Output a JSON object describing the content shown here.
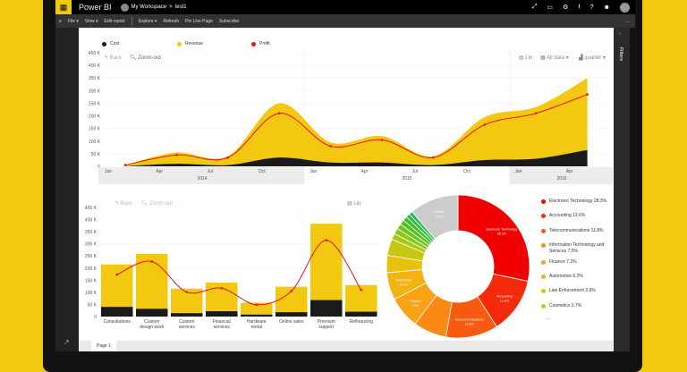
{
  "topbar": {
    "app_name": "Power BI",
    "workspace": "My Workspace",
    "separator": ">",
    "report": "test1",
    "icons": [
      "expand-icon",
      "comment-icon",
      "gear-icon",
      "download-icon",
      "help-icon",
      "smiley-icon",
      "user-avatar"
    ]
  },
  "toolbar": {
    "items": [
      "File ▾",
      "View ▾",
      "Edit report",
      "Explore ▾",
      "Refresh",
      "Pin Live Page",
      "Subscribe"
    ],
    "more": "..."
  },
  "filters": {
    "label": "Filters"
  },
  "page_tab": "Page 1",
  "colors": {
    "cost": "#1a1a1a",
    "revenue": "#f2c811",
    "profit": "#e8121b"
  },
  "top_chart_controls": {
    "back": "Back",
    "zoom_out": "Zoom-out",
    "lin": "Lin",
    "all_data": "All data ▾",
    "quarter": "quarter ▾"
  },
  "bottom_chart_controls": {
    "back": "Back",
    "zoom_out": "Zoom-out",
    "lin": "Lin"
  },
  "chart_data": [
    {
      "type": "area",
      "legend": [
        "Cost",
        "Revenue",
        "Profit"
      ],
      "legend_placement": "top-left",
      "x": [
        "2014 Q1",
        "2014 Q2",
        "2014 Q3",
        "2014 Q4",
        "2015 Q1",
        "2015 Q2",
        "2015 Q3",
        "2015 Q4",
        "2016 Q1",
        "2016 Q2"
      ],
      "series": [
        {
          "name": "Revenue",
          "values": [
            5,
            55,
            40,
            250,
            95,
            120,
            40,
            195,
            235,
            350
          ]
        },
        {
          "name": "Cost",
          "values": [
            0,
            10,
            5,
            35,
            15,
            15,
            5,
            25,
            30,
            65
          ]
        },
        {
          "name": "Profit",
          "values": [
            5,
            45,
            35,
            210,
            80,
            105,
            35,
            165,
            210,
            285
          ]
        }
      ],
      "yticks": [
        "0",
        "50 K",
        "100 K",
        "150 K",
        "200 K",
        "250 K",
        "300 K",
        "350 K",
        "400 K",
        "450 K"
      ],
      "ylim": [
        0,
        450
      ],
      "xticks": [
        "Jan",
        "Apr",
        "Jul",
        "Oct",
        "Jan",
        "Apr",
        "Jul",
        "Oct",
        "Jan",
        "Apr"
      ],
      "years": [
        "2014",
        "2015",
        "2016"
      ],
      "grid": true
    },
    {
      "type": "bar",
      "categories": [
        "Consultations",
        "Custom design work",
        "Custom services",
        "Financial services",
        "Hardware rental",
        "Online sales",
        "Premium support",
        "Refinancing"
      ],
      "series": [
        {
          "name": "Revenue",
          "values": [
            215,
            258,
            115,
            140,
            57,
            123,
            383,
            130
          ]
        },
        {
          "name": "Cost",
          "values": [
            40,
            32,
            14,
            22,
            8,
            18,
            68,
            20
          ]
        },
        {
          "name": "Profit",
          "values": [
            173,
            227,
            101,
            117,
            49,
            105,
            315,
            110
          ]
        }
      ],
      "yticks": [
        "0",
        "50 K",
        "100 K",
        "150 K",
        "200 K",
        "250 K",
        "300 K",
        "350 K",
        "400 K",
        "450 K"
      ],
      "ylim": [
        0,
        450
      ],
      "grid": true
    },
    {
      "type": "pie",
      "donut": true,
      "slices": [
        {
          "label": "Electronic Technology",
          "value": 28.3,
          "color": "#f00000",
          "inner": "Electronic Technology 28.3%"
        },
        {
          "label": "Accounting",
          "value": 12.6,
          "color": "#f52a0a",
          "inner": "Accounting 12.6%"
        },
        {
          "label": "Telecommunications",
          "value": 11.8,
          "color": "#f85a10",
          "inner": "Telecommunications 11.8%"
        },
        {
          "label": "Information Technology and Services",
          "value": 7.5,
          "color": "#fa8a14",
          "inner": ""
        },
        {
          "label": "Finance",
          "value": 7.2,
          "color": "#f9a216",
          "inner": "Finance 7.2%"
        },
        {
          "label": "Automotive",
          "value": 6.2,
          "color": "#f2b211",
          "inner": "Automotive 6.2%"
        },
        {
          "label": "Law Enforcement",
          "value": 3.9,
          "color": "#e6c20c",
          "inner": ""
        },
        {
          "label": "Cosmetics",
          "value": 3.7,
          "color": "#c5c80e",
          "inner": ""
        },
        {
          "label": "",
          "value": 1.4,
          "color": "#a8c815",
          "inner": ""
        },
        {
          "label": "",
          "value": 1.3,
          "color": "#8cc81a",
          "inner": ""
        },
        {
          "label": "",
          "value": 1.2,
          "color": "#6ec41f",
          "inner": ""
        },
        {
          "label": "",
          "value": 1.1,
          "color": "#52c225",
          "inner": ""
        },
        {
          "label": "",
          "value": 1.0,
          "color": "#3cbf2a",
          "inner": ""
        },
        {
          "label": "",
          "value": 0.9,
          "color": "#2fbc3c",
          "inner": ""
        },
        {
          "label": "",
          "value": 0.8,
          "color": "#25b858",
          "inner": ""
        },
        {
          "label": "Others",
          "value": 11.1,
          "color": "#cccccc",
          "inner": "Others 11.1%"
        }
      ],
      "legend": [
        "Electronic Technology 28.3%",
        "Accounting 12.6%",
        "Telecommunications 11.8%",
        "Information Technology and Services 7.5%",
        "Finance 7.2%",
        "Automotive 6.2%",
        "Law Enforcement 3.9%",
        "Cosmetics 3.7%"
      ],
      "legend_more": "..."
    }
  ]
}
